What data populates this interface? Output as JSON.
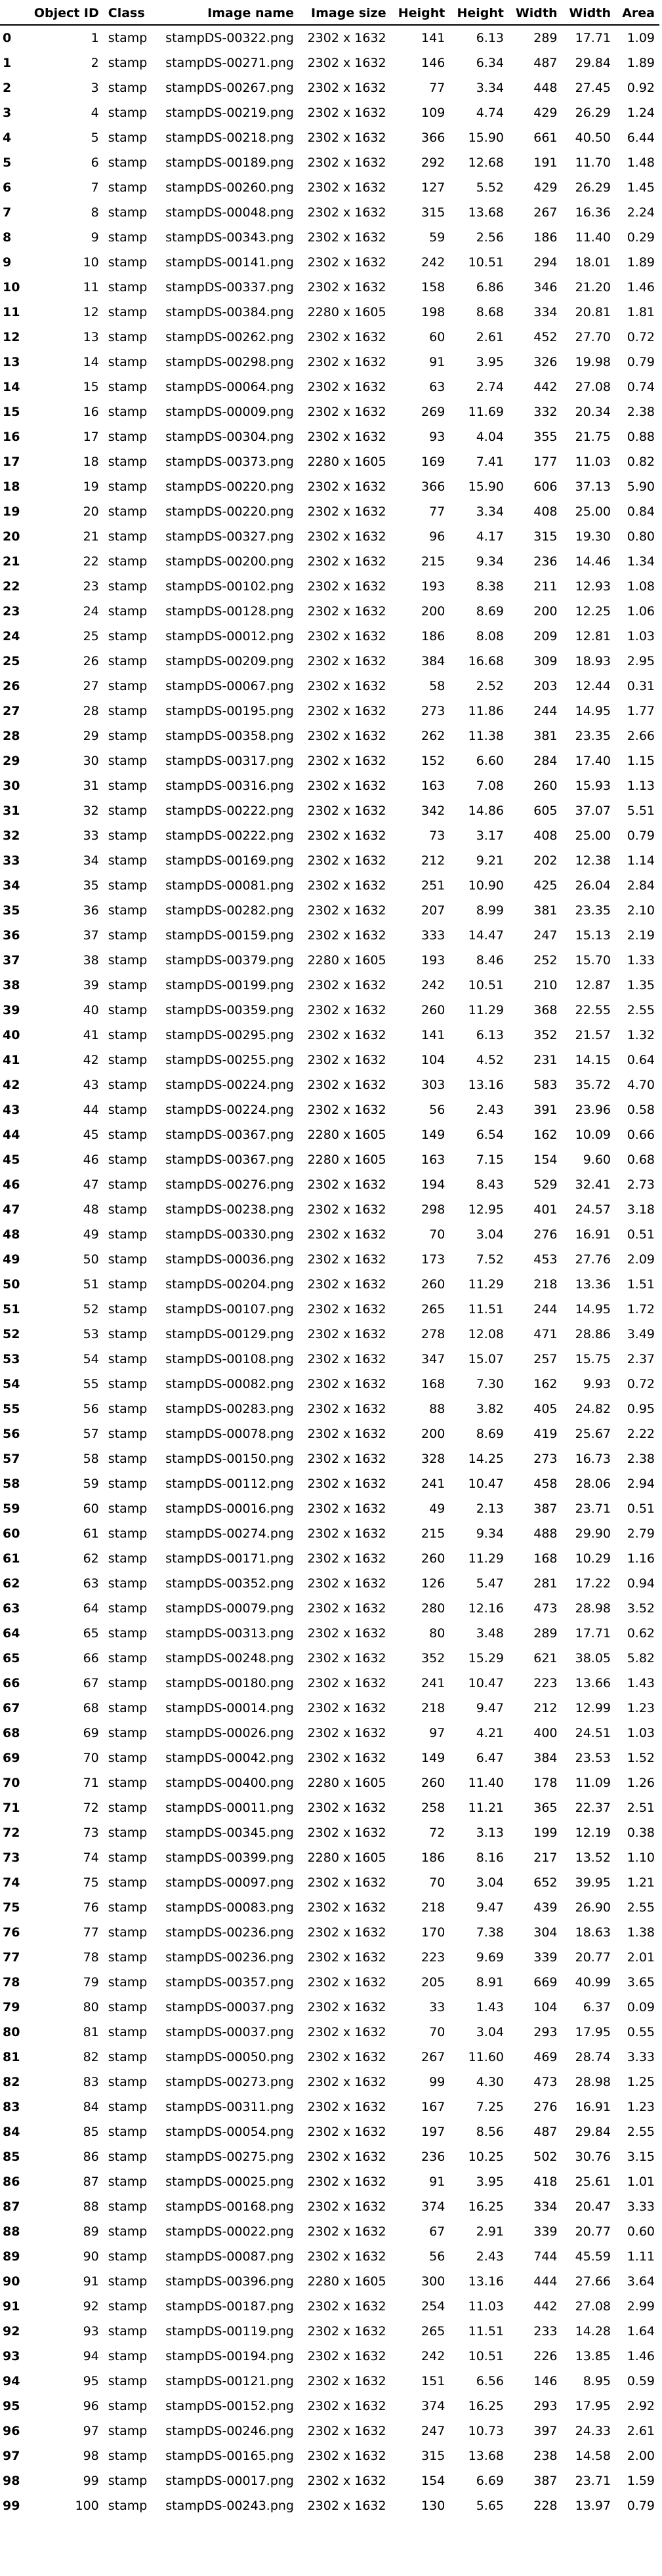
{
  "table": {
    "columns": [
      "",
      "Object ID",
      "Class",
      "Image name",
      "Image size",
      "Height",
      "Height",
      "Width",
      "Width",
      "Area"
    ],
    "rows": [
      [
        "0",
        "1",
        "stamp",
        "stampDS-00322.png",
        "2302 x 1632",
        "141",
        "6.13",
        "289",
        "17.71",
        "1.09"
      ],
      [
        "1",
        "2",
        "stamp",
        "stampDS-00271.png",
        "2302 x 1632",
        "146",
        "6.34",
        "487",
        "29.84",
        "1.89"
      ],
      [
        "2",
        "3",
        "stamp",
        "stampDS-00267.png",
        "2302 x 1632",
        "77",
        "3.34",
        "448",
        "27.45",
        "0.92"
      ],
      [
        "3",
        "4",
        "stamp",
        "stampDS-00219.png",
        "2302 x 1632",
        "109",
        "4.74",
        "429",
        "26.29",
        "1.24"
      ],
      [
        "4",
        "5",
        "stamp",
        "stampDS-00218.png",
        "2302 x 1632",
        "366",
        "15.90",
        "661",
        "40.50",
        "6.44"
      ],
      [
        "5",
        "6",
        "stamp",
        "stampDS-00189.png",
        "2302 x 1632",
        "292",
        "12.68",
        "191",
        "11.70",
        "1.48"
      ],
      [
        "6",
        "7",
        "stamp",
        "stampDS-00260.png",
        "2302 x 1632",
        "127",
        "5.52",
        "429",
        "26.29",
        "1.45"
      ],
      [
        "7",
        "8",
        "stamp",
        "stampDS-00048.png",
        "2302 x 1632",
        "315",
        "13.68",
        "267",
        "16.36",
        "2.24"
      ],
      [
        "8",
        "9",
        "stamp",
        "stampDS-00343.png",
        "2302 x 1632",
        "59",
        "2.56",
        "186",
        "11.40",
        "0.29"
      ],
      [
        "9",
        "10",
        "stamp",
        "stampDS-00141.png",
        "2302 x 1632",
        "242",
        "10.51",
        "294",
        "18.01",
        "1.89"
      ],
      [
        "10",
        "11",
        "stamp",
        "stampDS-00337.png",
        "2302 x 1632",
        "158",
        "6.86",
        "346",
        "21.20",
        "1.46"
      ],
      [
        "11",
        "12",
        "stamp",
        "stampDS-00384.png",
        "2280 x 1605",
        "198",
        "8.68",
        "334",
        "20.81",
        "1.81"
      ],
      [
        "12",
        "13",
        "stamp",
        "stampDS-00262.png",
        "2302 x 1632",
        "60",
        "2.61",
        "452",
        "27.70",
        "0.72"
      ],
      [
        "13",
        "14",
        "stamp",
        "stampDS-00298.png",
        "2302 x 1632",
        "91",
        "3.95",
        "326",
        "19.98",
        "0.79"
      ],
      [
        "14",
        "15",
        "stamp",
        "stampDS-00064.png",
        "2302 x 1632",
        "63",
        "2.74",
        "442",
        "27.08",
        "0.74"
      ],
      [
        "15",
        "16",
        "stamp",
        "stampDS-00009.png",
        "2302 x 1632",
        "269",
        "11.69",
        "332",
        "20.34",
        "2.38"
      ],
      [
        "16",
        "17",
        "stamp",
        "stampDS-00304.png",
        "2302 x 1632",
        "93",
        "4.04",
        "355",
        "21.75",
        "0.88"
      ],
      [
        "17",
        "18",
        "stamp",
        "stampDS-00373.png",
        "2280 x 1605",
        "169",
        "7.41",
        "177",
        "11.03",
        "0.82"
      ],
      [
        "18",
        "19",
        "stamp",
        "stampDS-00220.png",
        "2302 x 1632",
        "366",
        "15.90",
        "606",
        "37.13",
        "5.90"
      ],
      [
        "19",
        "20",
        "stamp",
        "stampDS-00220.png",
        "2302 x 1632",
        "77",
        "3.34",
        "408",
        "25.00",
        "0.84"
      ],
      [
        "20",
        "21",
        "stamp",
        "stampDS-00327.png",
        "2302 x 1632",
        "96",
        "4.17",
        "315",
        "19.30",
        "0.80"
      ],
      [
        "21",
        "22",
        "stamp",
        "stampDS-00200.png",
        "2302 x 1632",
        "215",
        "9.34",
        "236",
        "14.46",
        "1.34"
      ],
      [
        "22",
        "23",
        "stamp",
        "stampDS-00102.png",
        "2302 x 1632",
        "193",
        "8.38",
        "211",
        "12.93",
        "1.08"
      ],
      [
        "23",
        "24",
        "stamp",
        "stampDS-00128.png",
        "2302 x 1632",
        "200",
        "8.69",
        "200",
        "12.25",
        "1.06"
      ],
      [
        "24",
        "25",
        "stamp",
        "stampDS-00012.png",
        "2302 x 1632",
        "186",
        "8.08",
        "209",
        "12.81",
        "1.03"
      ],
      [
        "25",
        "26",
        "stamp",
        "stampDS-00209.png",
        "2302 x 1632",
        "384",
        "16.68",
        "309",
        "18.93",
        "2.95"
      ],
      [
        "26",
        "27",
        "stamp",
        "stampDS-00067.png",
        "2302 x 1632",
        "58",
        "2.52",
        "203",
        "12.44",
        "0.31"
      ],
      [
        "27",
        "28",
        "stamp",
        "stampDS-00195.png",
        "2302 x 1632",
        "273",
        "11.86",
        "244",
        "14.95",
        "1.77"
      ],
      [
        "28",
        "29",
        "stamp",
        "stampDS-00358.png",
        "2302 x 1632",
        "262",
        "11.38",
        "381",
        "23.35",
        "2.66"
      ],
      [
        "29",
        "30",
        "stamp",
        "stampDS-00317.png",
        "2302 x 1632",
        "152",
        "6.60",
        "284",
        "17.40",
        "1.15"
      ],
      [
        "30",
        "31",
        "stamp",
        "stampDS-00316.png",
        "2302 x 1632",
        "163",
        "7.08",
        "260",
        "15.93",
        "1.13"
      ],
      [
        "31",
        "32",
        "stamp",
        "stampDS-00222.png",
        "2302 x 1632",
        "342",
        "14.86",
        "605",
        "37.07",
        "5.51"
      ],
      [
        "32",
        "33",
        "stamp",
        "stampDS-00222.png",
        "2302 x 1632",
        "73",
        "3.17",
        "408",
        "25.00",
        "0.79"
      ],
      [
        "33",
        "34",
        "stamp",
        "stampDS-00169.png",
        "2302 x 1632",
        "212",
        "9.21",
        "202",
        "12.38",
        "1.14"
      ],
      [
        "34",
        "35",
        "stamp",
        "stampDS-00081.png",
        "2302 x 1632",
        "251",
        "10.90",
        "425",
        "26.04",
        "2.84"
      ],
      [
        "35",
        "36",
        "stamp",
        "stampDS-00282.png",
        "2302 x 1632",
        "207",
        "8.99",
        "381",
        "23.35",
        "2.10"
      ],
      [
        "36",
        "37",
        "stamp",
        "stampDS-00159.png",
        "2302 x 1632",
        "333",
        "14.47",
        "247",
        "15.13",
        "2.19"
      ],
      [
        "37",
        "38",
        "stamp",
        "stampDS-00379.png",
        "2280 x 1605",
        "193",
        "8.46",
        "252",
        "15.70",
        "1.33"
      ],
      [
        "38",
        "39",
        "stamp",
        "stampDS-00199.png",
        "2302 x 1632",
        "242",
        "10.51",
        "210",
        "12.87",
        "1.35"
      ],
      [
        "39",
        "40",
        "stamp",
        "stampDS-00359.png",
        "2302 x 1632",
        "260",
        "11.29",
        "368",
        "22.55",
        "2.55"
      ],
      [
        "40",
        "41",
        "stamp",
        "stampDS-00295.png",
        "2302 x 1632",
        "141",
        "6.13",
        "352",
        "21.57",
        "1.32"
      ],
      [
        "41",
        "42",
        "stamp",
        "stampDS-00255.png",
        "2302 x 1632",
        "104",
        "4.52",
        "231",
        "14.15",
        "0.64"
      ],
      [
        "42",
        "43",
        "stamp",
        "stampDS-00224.png",
        "2302 x 1632",
        "303",
        "13.16",
        "583",
        "35.72",
        "4.70"
      ],
      [
        "43",
        "44",
        "stamp",
        "stampDS-00224.png",
        "2302 x 1632",
        "56",
        "2.43",
        "391",
        "23.96",
        "0.58"
      ],
      [
        "44",
        "45",
        "stamp",
        "stampDS-00367.png",
        "2280 x 1605",
        "149",
        "6.54",
        "162",
        "10.09",
        "0.66"
      ],
      [
        "45",
        "46",
        "stamp",
        "stampDS-00367.png",
        "2280 x 1605",
        "163",
        "7.15",
        "154",
        "9.60",
        "0.68"
      ],
      [
        "46",
        "47",
        "stamp",
        "stampDS-00276.png",
        "2302 x 1632",
        "194",
        "8.43",
        "529",
        "32.41",
        "2.73"
      ],
      [
        "47",
        "48",
        "stamp",
        "stampDS-00238.png",
        "2302 x 1632",
        "298",
        "12.95",
        "401",
        "24.57",
        "3.18"
      ],
      [
        "48",
        "49",
        "stamp",
        "stampDS-00330.png",
        "2302 x 1632",
        "70",
        "3.04",
        "276",
        "16.91",
        "0.51"
      ],
      [
        "49",
        "50",
        "stamp",
        "stampDS-00036.png",
        "2302 x 1632",
        "173",
        "7.52",
        "453",
        "27.76",
        "2.09"
      ],
      [
        "50",
        "51",
        "stamp",
        "stampDS-00204.png",
        "2302 x 1632",
        "260",
        "11.29",
        "218",
        "13.36",
        "1.51"
      ],
      [
        "51",
        "52",
        "stamp",
        "stampDS-00107.png",
        "2302 x 1632",
        "265",
        "11.51",
        "244",
        "14.95",
        "1.72"
      ],
      [
        "52",
        "53",
        "stamp",
        "stampDS-00129.png",
        "2302 x 1632",
        "278",
        "12.08",
        "471",
        "28.86",
        "3.49"
      ],
      [
        "53",
        "54",
        "stamp",
        "stampDS-00108.png",
        "2302 x 1632",
        "347",
        "15.07",
        "257",
        "15.75",
        "2.37"
      ],
      [
        "54",
        "55",
        "stamp",
        "stampDS-00082.png",
        "2302 x 1632",
        "168",
        "7.30",
        "162",
        "9.93",
        "0.72"
      ],
      [
        "55",
        "56",
        "stamp",
        "stampDS-00283.png",
        "2302 x 1632",
        "88",
        "3.82",
        "405",
        "24.82",
        "0.95"
      ],
      [
        "56",
        "57",
        "stamp",
        "stampDS-00078.png",
        "2302 x 1632",
        "200",
        "8.69",
        "419",
        "25.67",
        "2.22"
      ],
      [
        "57",
        "58",
        "stamp",
        "stampDS-00150.png",
        "2302 x 1632",
        "328",
        "14.25",
        "273",
        "16.73",
        "2.38"
      ],
      [
        "58",
        "59",
        "stamp",
        "stampDS-00112.png",
        "2302 x 1632",
        "241",
        "10.47",
        "458",
        "28.06",
        "2.94"
      ],
      [
        "59",
        "60",
        "stamp",
        "stampDS-00016.png",
        "2302 x 1632",
        "49",
        "2.13",
        "387",
        "23.71",
        "0.51"
      ],
      [
        "60",
        "61",
        "stamp",
        "stampDS-00274.png",
        "2302 x 1632",
        "215",
        "9.34",
        "488",
        "29.90",
        "2.79"
      ],
      [
        "61",
        "62",
        "stamp",
        "stampDS-00171.png",
        "2302 x 1632",
        "260",
        "11.29",
        "168",
        "10.29",
        "1.16"
      ],
      [
        "62",
        "63",
        "stamp",
        "stampDS-00352.png",
        "2302 x 1632",
        "126",
        "5.47",
        "281",
        "17.22",
        "0.94"
      ],
      [
        "63",
        "64",
        "stamp",
        "stampDS-00079.png",
        "2302 x 1632",
        "280",
        "12.16",
        "473",
        "28.98",
        "3.52"
      ],
      [
        "64",
        "65",
        "stamp",
        "stampDS-00313.png",
        "2302 x 1632",
        "80",
        "3.48",
        "289",
        "17.71",
        "0.62"
      ],
      [
        "65",
        "66",
        "stamp",
        "stampDS-00248.png",
        "2302 x 1632",
        "352",
        "15.29",
        "621",
        "38.05",
        "5.82"
      ],
      [
        "66",
        "67",
        "stamp",
        "stampDS-00180.png",
        "2302 x 1632",
        "241",
        "10.47",
        "223",
        "13.66",
        "1.43"
      ],
      [
        "67",
        "68",
        "stamp",
        "stampDS-00014.png",
        "2302 x 1632",
        "218",
        "9.47",
        "212",
        "12.99",
        "1.23"
      ],
      [
        "68",
        "69",
        "stamp",
        "stampDS-00026.png",
        "2302 x 1632",
        "97",
        "4.21",
        "400",
        "24.51",
        "1.03"
      ],
      [
        "69",
        "70",
        "stamp",
        "stampDS-00042.png",
        "2302 x 1632",
        "149",
        "6.47",
        "384",
        "23.53",
        "1.52"
      ],
      [
        "70",
        "71",
        "stamp",
        "stampDS-00400.png",
        "2280 x 1605",
        "260",
        "11.40",
        "178",
        "11.09",
        "1.26"
      ],
      [
        "71",
        "72",
        "stamp",
        "stampDS-00011.png",
        "2302 x 1632",
        "258",
        "11.21",
        "365",
        "22.37",
        "2.51"
      ],
      [
        "72",
        "73",
        "stamp",
        "stampDS-00345.png",
        "2302 x 1632",
        "72",
        "3.13",
        "199",
        "12.19",
        "0.38"
      ],
      [
        "73",
        "74",
        "stamp",
        "stampDS-00399.png",
        "2280 x 1605",
        "186",
        "8.16",
        "217",
        "13.52",
        "1.10"
      ],
      [
        "74",
        "75",
        "stamp",
        "stampDS-00097.png",
        "2302 x 1632",
        "70",
        "3.04",
        "652",
        "39.95",
        "1.21"
      ],
      [
        "75",
        "76",
        "stamp",
        "stampDS-00083.png",
        "2302 x 1632",
        "218",
        "9.47",
        "439",
        "26.90",
        "2.55"
      ],
      [
        "76",
        "77",
        "stamp",
        "stampDS-00236.png",
        "2302 x 1632",
        "170",
        "7.38",
        "304",
        "18.63",
        "1.38"
      ],
      [
        "77",
        "78",
        "stamp",
        "stampDS-00236.png",
        "2302 x 1632",
        "223",
        "9.69",
        "339",
        "20.77",
        "2.01"
      ],
      [
        "78",
        "79",
        "stamp",
        "stampDS-00357.png",
        "2302 x 1632",
        "205",
        "8.91",
        "669",
        "40.99",
        "3.65"
      ],
      [
        "79",
        "80",
        "stamp",
        "stampDS-00037.png",
        "2302 x 1632",
        "33",
        "1.43",
        "104",
        "6.37",
        "0.09"
      ],
      [
        "80",
        "81",
        "stamp",
        "stampDS-00037.png",
        "2302 x 1632",
        "70",
        "3.04",
        "293",
        "17.95",
        "0.55"
      ],
      [
        "81",
        "82",
        "stamp",
        "stampDS-00050.png",
        "2302 x 1632",
        "267",
        "11.60",
        "469",
        "28.74",
        "3.33"
      ],
      [
        "82",
        "83",
        "stamp",
        "stampDS-00273.png",
        "2302 x 1632",
        "99",
        "4.30",
        "473",
        "28.98",
        "1.25"
      ],
      [
        "83",
        "84",
        "stamp",
        "stampDS-00311.png",
        "2302 x 1632",
        "167",
        "7.25",
        "276",
        "16.91",
        "1.23"
      ],
      [
        "84",
        "85",
        "stamp",
        "stampDS-00054.png",
        "2302 x 1632",
        "197",
        "8.56",
        "487",
        "29.84",
        "2.55"
      ],
      [
        "85",
        "86",
        "stamp",
        "stampDS-00275.png",
        "2302 x 1632",
        "236",
        "10.25",
        "502",
        "30.76",
        "3.15"
      ],
      [
        "86",
        "87",
        "stamp",
        "stampDS-00025.png",
        "2302 x 1632",
        "91",
        "3.95",
        "418",
        "25.61",
        "1.01"
      ],
      [
        "87",
        "88",
        "stamp",
        "stampDS-00168.png",
        "2302 x 1632",
        "374",
        "16.25",
        "334",
        "20.47",
        "3.33"
      ],
      [
        "88",
        "89",
        "stamp",
        "stampDS-00022.png",
        "2302 x 1632",
        "67",
        "2.91",
        "339",
        "20.77",
        "0.60"
      ],
      [
        "89",
        "90",
        "stamp",
        "stampDS-00087.png",
        "2302 x 1632",
        "56",
        "2.43",
        "744",
        "45.59",
        "1.11"
      ],
      [
        "90",
        "91",
        "stamp",
        "stampDS-00396.png",
        "2280 x 1605",
        "300",
        "13.16",
        "444",
        "27.66",
        "3.64"
      ],
      [
        "91",
        "92",
        "stamp",
        "stampDS-00187.png",
        "2302 x 1632",
        "254",
        "11.03",
        "442",
        "27.08",
        "2.99"
      ],
      [
        "92",
        "93",
        "stamp",
        "stampDS-00119.png",
        "2302 x 1632",
        "265",
        "11.51",
        "233",
        "14.28",
        "1.64"
      ],
      [
        "93",
        "94",
        "stamp",
        "stampDS-00194.png",
        "2302 x 1632",
        "242",
        "10.51",
        "226",
        "13.85",
        "1.46"
      ],
      [
        "94",
        "95",
        "stamp",
        "stampDS-00121.png",
        "2302 x 1632",
        "151",
        "6.56",
        "146",
        "8.95",
        "0.59"
      ],
      [
        "95",
        "96",
        "stamp",
        "stampDS-00152.png",
        "2302 x 1632",
        "374",
        "16.25",
        "293",
        "17.95",
        "2.92"
      ],
      [
        "96",
        "97",
        "stamp",
        "stampDS-00246.png",
        "2302 x 1632",
        "247",
        "10.73",
        "397",
        "24.33",
        "2.61"
      ],
      [
        "97",
        "98",
        "stamp",
        "stampDS-00165.png",
        "2302 x 1632",
        "315",
        "13.68",
        "238",
        "14.58",
        "2.00"
      ],
      [
        "98",
        "99",
        "stamp",
        "stampDS-00017.png",
        "2302 x 1632",
        "154",
        "6.69",
        "387",
        "23.71",
        "1.59"
      ],
      [
        "99",
        "100",
        "stamp",
        "stampDS-00243.png",
        "2302 x 1632",
        "130",
        "5.65",
        "228",
        "13.97",
        "0.79"
      ]
    ]
  }
}
